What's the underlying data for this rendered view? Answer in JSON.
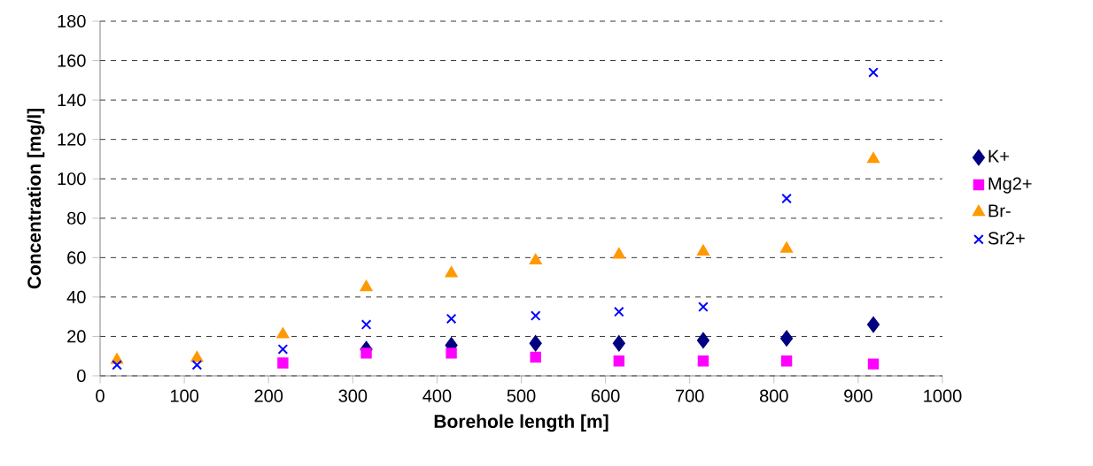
{
  "chart_data": {
    "type": "scatter",
    "xlabel": "Borehole length [m]",
    "ylabel": "Concentration [mg/l]",
    "x": [
      20,
      115,
      217,
      316,
      417,
      517,
      616,
      716,
      815,
      918
    ],
    "series": [
      {
        "name": "K+",
        "color": "#000080",
        "marker": "diamond",
        "values": [
          null,
          null,
          null,
          13.5,
          15.5,
          16.5,
          16.5,
          18,
          19,
          26
        ]
      },
      {
        "name": "Mg2+",
        "color": "#ff00ff",
        "marker": "square",
        "values": [
          null,
          null,
          6.5,
          11.5,
          11.5,
          9.5,
          7.5,
          7.5,
          7.5,
          6
        ]
      },
      {
        "name": "Br-",
        "color": "#ff9900",
        "marker": "triangle",
        "values": [
          8,
          9,
          21,
          45,
          52,
          58.5,
          61.5,
          63,
          64.5,
          110
        ]
      },
      {
        "name": "Sr2+",
        "color": "#0000ff",
        "marker": "cross",
        "values": [
          5.5,
          5.5,
          13.5,
          26,
          29,
          30.5,
          32.5,
          35,
          90,
          154
        ]
      }
    ],
    "xlim": [
      0,
      1000
    ],
    "xticks": [
      0,
      100,
      200,
      300,
      400,
      500,
      600,
      700,
      800,
      900,
      1000
    ],
    "ylim": [
      0,
      180
    ],
    "yticks": [
      0,
      20,
      40,
      60,
      80,
      100,
      120,
      140,
      160,
      180
    ],
    "grid": "y",
    "legend": "right"
  }
}
